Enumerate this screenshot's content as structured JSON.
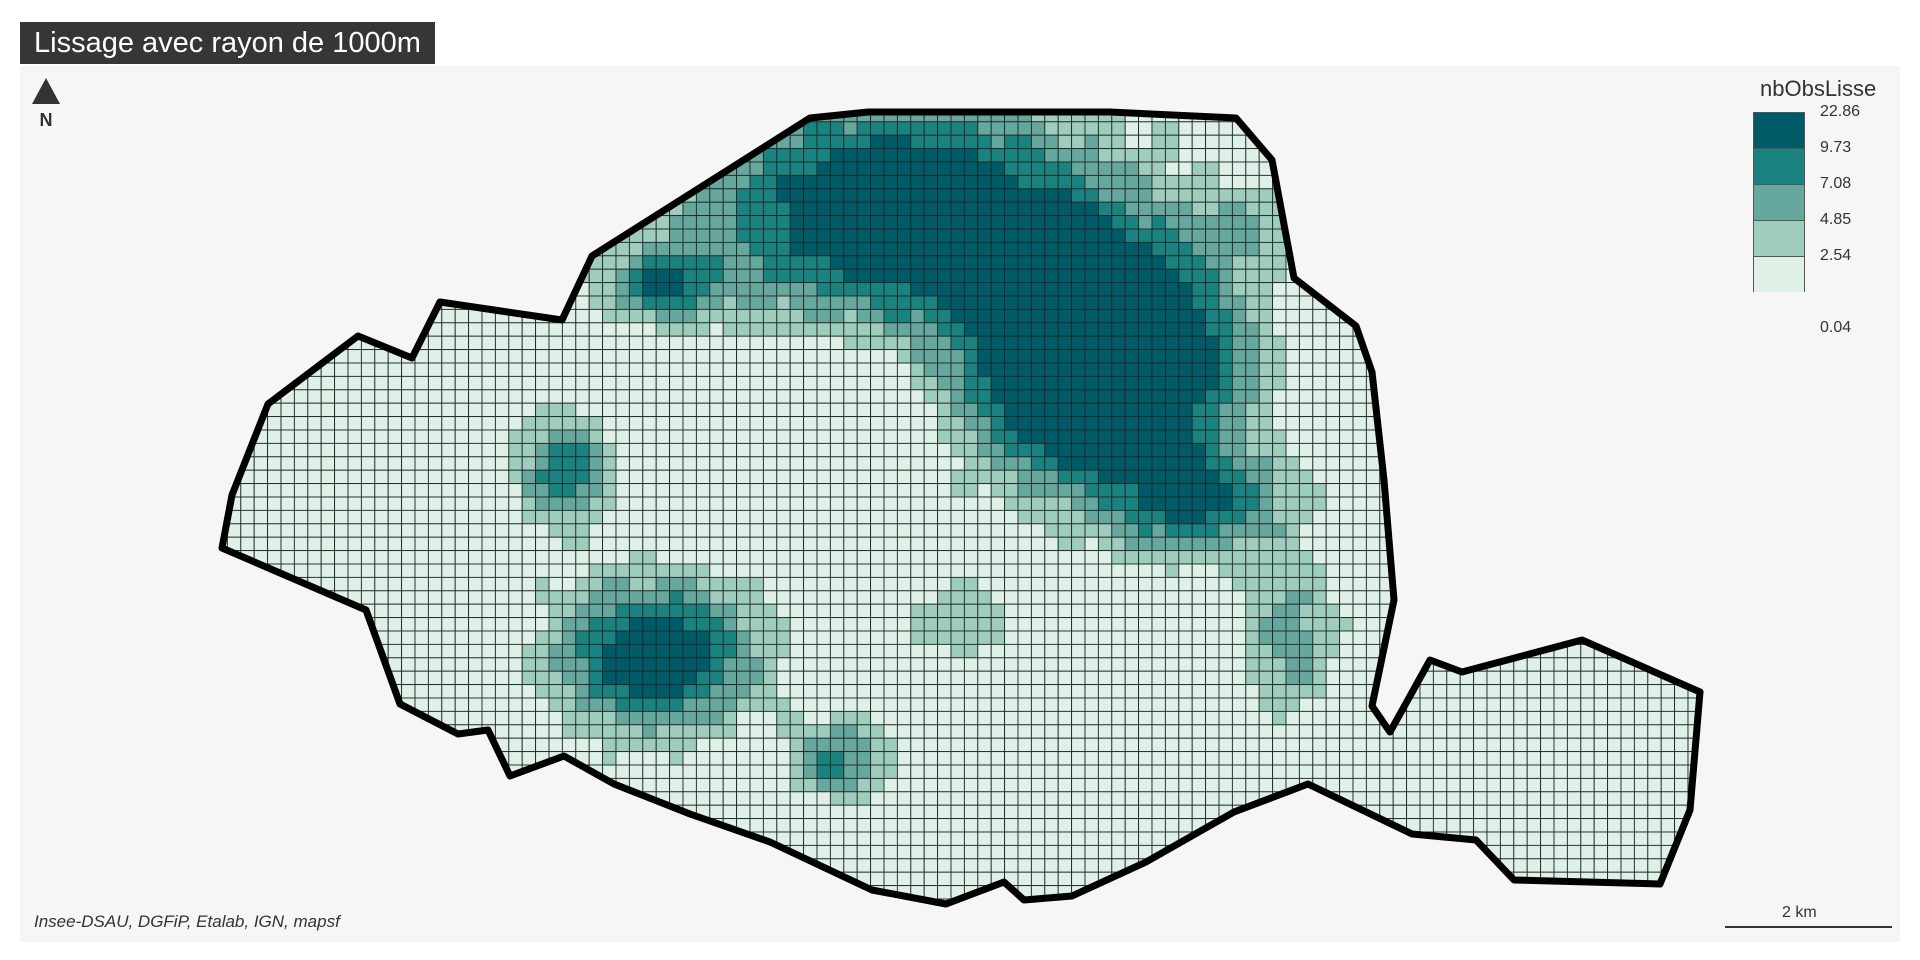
{
  "map": {
    "title": "Lissage avec rayon de 1000m",
    "north_label": "N",
    "credits": "Insee-DSAU, DGFiP, Etalab, IGN, mapsf",
    "scale_label": "2 km",
    "background_color": "#f6f6f6",
    "cell_border_color": "#1e2a28",
    "boundary_color": "#000000"
  },
  "legend": {
    "title": "nbObsLisse",
    "breaks": [
      "22.86",
      "9.73",
      "7.08",
      "4.85",
      "2.54",
      "0.04"
    ],
    "classes": [
      {
        "range": "9.73 – 22.86",
        "color": "#005b68"
      },
      {
        "range": "7.08 – 9.73",
        "color": "#1a8380"
      },
      {
        "range": "4.85 – 7.08",
        "color": "#66a79e"
      },
      {
        "range": "2.54 – 4.85",
        "color": "#9fcdbd"
      },
      {
        "range": "0.04 – 2.54",
        "color": "#dff0e6"
      }
    ]
  }
}
